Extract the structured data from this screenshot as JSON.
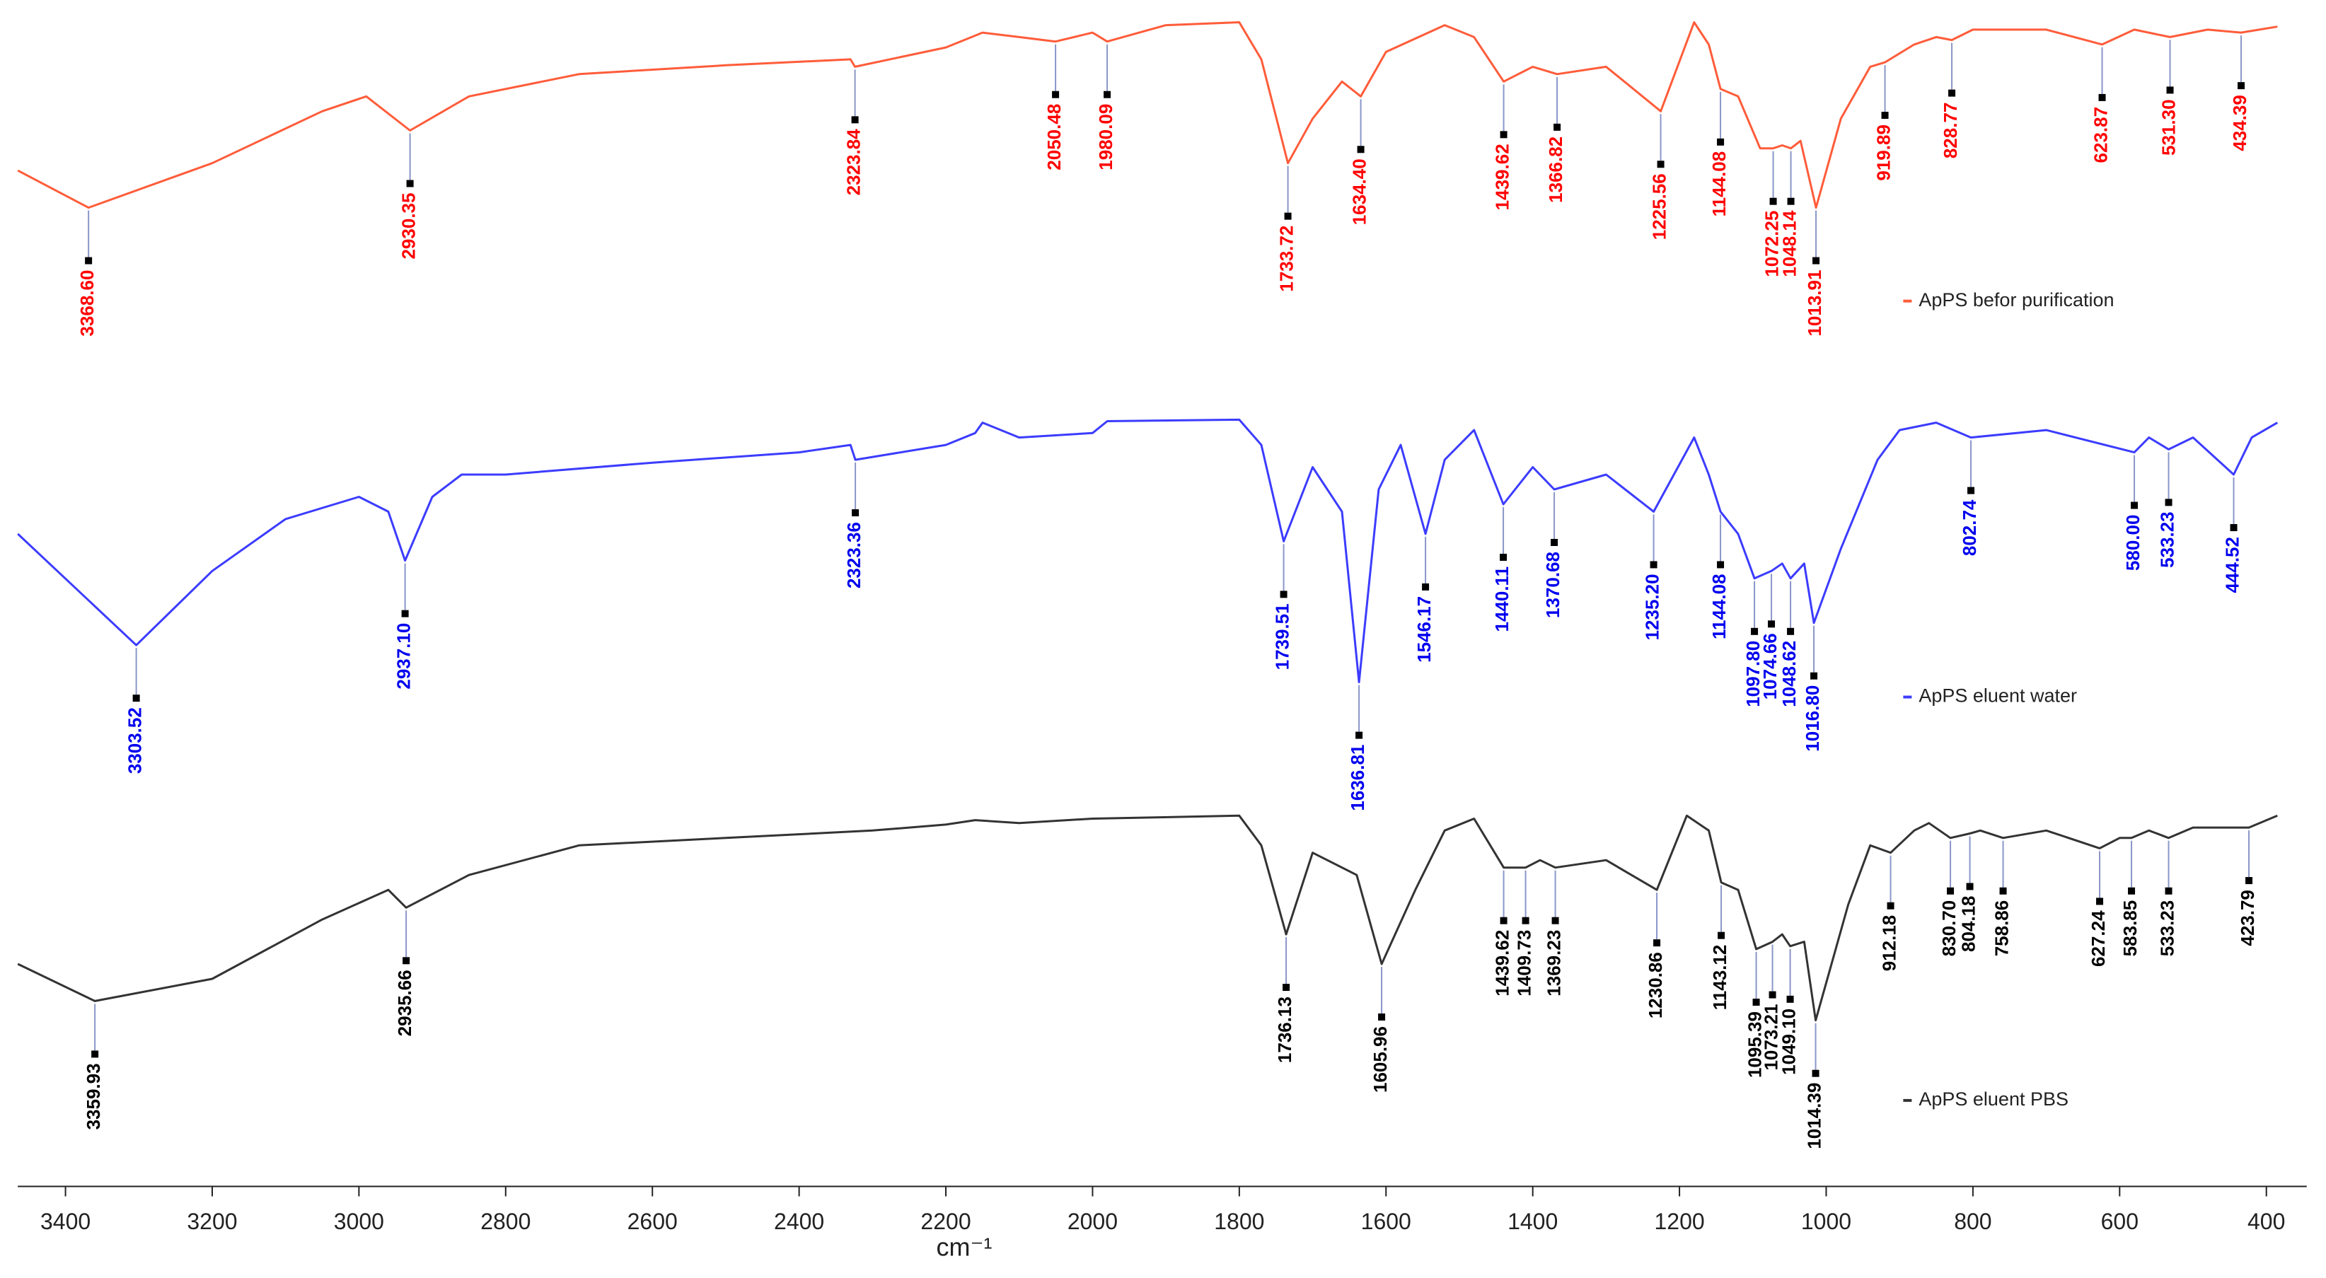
{
  "chart_data": {
    "type": "line",
    "x_label": "cm⁻¹",
    "xlim": [
      3465,
      345
    ],
    "xticks": [
      3400,
      3200,
      3000,
      2800,
      2600,
      2400,
      2200,
      2000,
      1800,
      1600,
      1400,
      1200,
      1000,
      800,
      600,
      400
    ],
    "ylim": [
      0,
      800
    ],
    "grid": false,
    "legend": "right",
    "series": [
      {
        "name": "ApPS befor purification",
        "color": "#ff5c3a",
        "label_color": "#ff0000",
        "x": [
          3465,
          3368.6,
          3200,
          3050,
          2990,
          2930.35,
          2850,
          2700,
          2500,
          2330,
          2323.84,
          2200,
          2150,
          2100,
          2050.48,
          2000,
          1980.09,
          1900,
          1800,
          1770,
          1733.72,
          1700,
          1660,
          1634.4,
          1600,
          1520,
          1480,
          1439.62,
          1400,
          1366.82,
          1300,
          1225.56,
          1180,
          1160,
          1144.08,
          1120,
          1090,
          1072.25,
          1060,
          1048.14,
          1035,
          1013.91,
          980,
          940,
          919.89,
          880,
          850,
          828.77,
          800,
          700,
          623.87,
          580,
          531.3,
          480,
          434.39,
          385
        ],
        "values": [
          685,
          660,
          690,
          725,
          735,
          712,
          735,
          750,
          756,
          760,
          755,
          768,
          778,
          775,
          772,
          778,
          772,
          783,
          785,
          760,
          690,
          720,
          745,
          735,
          765,
          783,
          775,
          745,
          755,
          750,
          755,
          725,
          785,
          770,
          740,
          735,
          700,
          700,
          702,
          700,
          705,
          660,
          720,
          755,
          758,
          770,
          775,
          773,
          780,
          780,
          770,
          780,
          775,
          780,
          778,
          782
        ],
        "peaks": [
          3368.6,
          2930.35,
          2323.84,
          2050.48,
          1980.09,
          1733.72,
          1634.4,
          1439.62,
          1366.82,
          1225.56,
          1144.08,
          1072.25,
          1048.14,
          1013.91,
          919.89,
          828.77,
          623.87,
          531.3,
          434.39
        ],
        "peak_labels": [
          "3368.60",
          "2930.35",
          "2323.84",
          "2050.48",
          "1980.09",
          "1733.72",
          "1634.40",
          "1439.62",
          "1366.82",
          "1225.56",
          "1144.08",
          "1072.25",
          "1048.14",
          "1013.91",
          "919.89",
          "828.77",
          "623.87",
          "531.30",
          "434.39"
        ]
      },
      {
        "name": "ApPS eluent water",
        "color": "#3c3cff",
        "label_color": "#0000ee",
        "x": [
          3465,
          3303.52,
          3200,
          3100,
          3000,
          2960,
          2937.1,
          2900,
          2860,
          2800,
          2600,
          2400,
          2330,
          2323.36,
          2200,
          2160,
          2150,
          2100,
          2000,
          1980,
          1800,
          1770,
          1739.51,
          1700,
          1660,
          1636.81,
          1610,
          1580,
          1546.17,
          1520,
          1480,
          1440.11,
          1400,
          1370.68,
          1300,
          1235.2,
          1180,
          1160,
          1144.08,
          1120,
          1097.8,
          1074.66,
          1060,
          1048.62,
          1030,
          1016.8,
          980,
          930,
          900,
          850,
          802.74,
          700,
          580,
          560,
          533.23,
          500,
          444.52,
          420,
          385
        ],
        "values": [
          440,
          365,
          415,
          450,
          465,
          455,
          422,
          465,
          480,
          480,
          488,
          495,
          500,
          490,
          500,
          508,
          515,
          505,
          508,
          516,
          517,
          500,
          435,
          485,
          455,
          340,
          470,
          500,
          440,
          490,
          510,
          460,
          485,
          470,
          480,
          455,
          505,
          480,
          455,
          440,
          410,
          415,
          420,
          410,
          420,
          380,
          430,
          490,
          510,
          515,
          505,
          510,
          495,
          505,
          497,
          505,
          480,
          505,
          515
        ],
        "peaks": [
          3303.52,
          2937.1,
          2323.36,
          1739.51,
          1636.81,
          1546.17,
          1440.11,
          1370.68,
          1235.2,
          1144.08,
          1097.8,
          1074.66,
          1048.62,
          1016.8,
          802.74,
          580,
          533.23,
          444.52
        ],
        "peak_labels": [
          "3303.52",
          "2937.10",
          "2323.36",
          "1739.51",
          "1636.81",
          "1546.17",
          "1440.11",
          "1370.68",
          "1235.20",
          "1144.08",
          "1097.80",
          "1074.66",
          "1048.62",
          "1016.80",
          "802.74",
          "580.00",
          "533.23",
          "444.52"
        ]
      },
      {
        "name": "ApPS eluent PBS",
        "color": "#333333",
        "label_color": "#000000",
        "x": [
          3465,
          3359.93,
          3200,
          3050,
          2960,
          2935.66,
          2850,
          2700,
          2500,
          2300,
          2200,
          2160,
          2100,
          2000,
          1800,
          1770,
          1736.13,
          1700,
          1640,
          1605.96,
          1560,
          1520,
          1480,
          1439.62,
          1409.73,
          1390,
          1369.23,
          1300,
          1230.86,
          1190,
          1160,
          1143.12,
          1120,
          1095.39,
          1073.21,
          1060,
          1049.1,
          1030,
          1014.39,
          970,
          940,
          912.18,
          880,
          860,
          830.7,
          804.18,
          790,
          758.86,
          700,
          627.24,
          600,
          583.85,
          560,
          533.23,
          500,
          423.79,
          385
        ],
        "values": [
          150,
          125,
          140,
          180,
          200,
          188,
          210,
          230,
          235,
          240,
          244,
          247,
          245,
          248,
          250,
          230,
          170,
          225,
          210,
          150,
          200,
          240,
          248,
          215,
          215,
          220,
          215,
          220,
          200,
          250,
          240,
          205,
          200,
          160,
          165,
          170,
          162,
          165,
          112,
          190,
          230,
          225,
          240,
          245,
          235,
          238,
          240,
          235,
          240,
          228,
          235,
          235,
          240,
          235,
          242,
          242,
          250
        ],
        "peaks": [
          3359.93,
          2935.66,
          1736.13,
          1605.96,
          1439.62,
          1409.73,
          1369.23,
          1230.86,
          1143.12,
          1095.39,
          1073.21,
          1049.1,
          1014.39,
          912.18,
          830.7,
          804.18,
          758.86,
          627.24,
          583.85,
          533.23,
          423.79
        ],
        "peak_labels": [
          "3359.93",
          "2935.66",
          "1736.13",
          "1605.96",
          "1439.62",
          "1409.73",
          "1369.23",
          "1230.86",
          "1143.12",
          "1095.39",
          "1073.21",
          "1049.10",
          "1014.39",
          "912.18",
          "830.70",
          "804.18",
          "758.86",
          "627.24",
          "583.85",
          "533.23",
          "423.79"
        ]
      }
    ]
  }
}
